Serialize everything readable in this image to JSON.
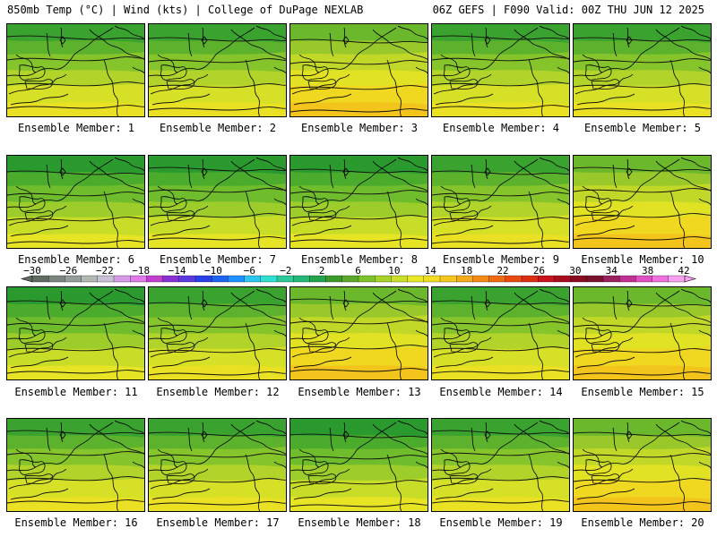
{
  "header": {
    "left": "850mb Temp (°C) | Wind (kts) | College of DuPage NEXLAB",
    "right": "06Z GEFS | F090 Valid: 00Z THU JUN 12 2025"
  },
  "members": [
    {
      "label": "Ensemble Member: 1",
      "palette": "mid"
    },
    {
      "label": "Ensemble Member: 2",
      "palette": "mid"
    },
    {
      "label": "Ensemble Member: 3",
      "palette": "warm"
    },
    {
      "label": "Ensemble Member: 4",
      "palette": "mid"
    },
    {
      "label": "Ensemble Member: 5",
      "palette": "mid"
    },
    {
      "label": "Ensemble Member: 6",
      "palette": "cool"
    },
    {
      "label": "Ensemble Member: 7",
      "palette": "cool"
    },
    {
      "label": "Ensemble Member: 8",
      "palette": "cool"
    },
    {
      "label": "Ensemble Member: 9",
      "palette": "mid"
    },
    {
      "label": "Ensemble Member: 10",
      "palette": "warm"
    },
    {
      "label": "Ensemble Member: 11",
      "palette": "cool"
    },
    {
      "label": "Ensemble Member: 12",
      "palette": "mid"
    },
    {
      "label": "Ensemble Member: 13",
      "palette": "warm"
    },
    {
      "label": "Ensemble Member: 14",
      "palette": "mid"
    },
    {
      "label": "Ensemble Member: 15",
      "palette": "warm"
    },
    {
      "label": "Ensemble Member: 16",
      "palette": "mid"
    },
    {
      "label": "Ensemble Member: 17",
      "palette": "mid"
    },
    {
      "label": "Ensemble Member: 18",
      "palette": "cool"
    },
    {
      "label": "Ensemble Member: 19",
      "palette": "mid"
    },
    {
      "label": "Ensemble Member: 20",
      "palette": "warm"
    }
  ],
  "colorbar": {
    "unit": "°C",
    "tick_labels": [
      "−30",
      "−26",
      "−22",
      "−18",
      "−14",
      "−10",
      "−6",
      "−2",
      "2",
      "6",
      "10",
      "14",
      "18",
      "22",
      "26",
      "30",
      "34",
      "38",
      "42"
    ],
    "colors": [
      "#5f6b63",
      "#7a857e",
      "#959e98",
      "#b2b8b3",
      "#c9c0d6",
      "#d69ae6",
      "#e07ae8",
      "#c23ed0",
      "#8a2fd6",
      "#5a3ae0",
      "#2c40e8",
      "#1f64f0",
      "#1e90ff",
      "#2cc6f0",
      "#2fe0d0",
      "#2ec99b",
      "#23b877",
      "#23a34b",
      "#3a9a2a",
      "#5ca82a",
      "#7ec22a",
      "#a6d22a",
      "#ccdf28",
      "#e8e824",
      "#f2dd22",
      "#f4c61e",
      "#f6ab1a",
      "#f58a16",
      "#f06a12",
      "#e84a10",
      "#dc2e10",
      "#c8141a",
      "#a80c1e",
      "#8a0a22",
      "#7a1030",
      "#9a2060",
      "#c03090",
      "#e050c0",
      "#f070e0",
      "#f8a0f0"
    ]
  },
  "palettes": {
    "cool": [
      "#2a9a2e",
      "#4aab2c",
      "#6fbd2c",
      "#9ccd2a",
      "#c8dd28",
      "#e6e424"
    ],
    "mid": [
      "#3aa22e",
      "#5cb22c",
      "#86c42c",
      "#b2d42a",
      "#d6e026",
      "#eae024"
    ],
    "warm": [
      "#6cb82c",
      "#98c82a",
      "#c2d828",
      "#e2e224",
      "#f0d820",
      "#f2c41c"
    ]
  }
}
